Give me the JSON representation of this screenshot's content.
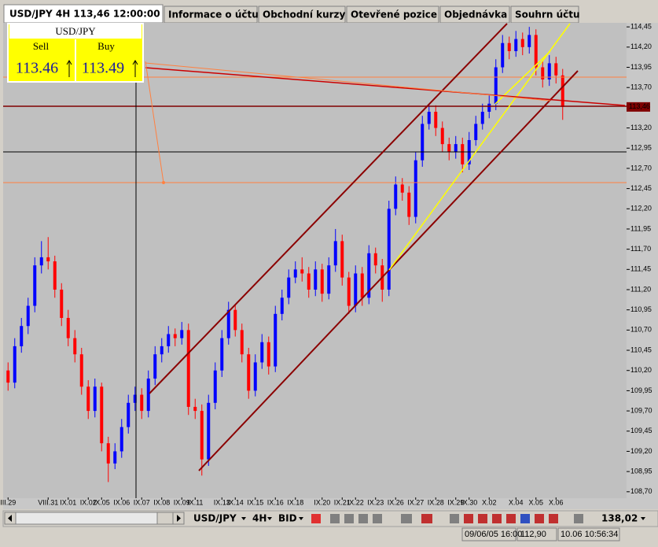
{
  "tabs": [
    "Informace o účtu",
    "Obchodní kurzy",
    "Otevřené pozice",
    "Objednávka",
    "Souhrn účtu"
  ],
  "widget": {
    "symbol": "USD/JPY",
    "sell_label": "Sell",
    "sell_price": "113.46",
    "buy_label": "Buy",
    "buy_price": "113.49"
  },
  "toolbar": {
    "symbol": "USD/JPY",
    "period": "4H",
    "price_type": "BID",
    "value": "138,02"
  },
  "status": {
    "datetime": "09/06/05 16:00",
    "price": "112,90",
    "clock": "10.06 10:56:34"
  },
  "chart_data": {
    "type": "candlestick",
    "title": "USD/JPY 4H 113,46 12:00:00",
    "up_color": "#0000ff",
    "down_color": "#ff0000",
    "ylim": [
      108.63,
      114.51
    ],
    "yticks": [
      {
        "value": 114.45,
        "label": "114,45"
      },
      {
        "value": 114.2,
        "label": "114,20"
      },
      {
        "value": 113.95,
        "label": "113,95"
      },
      {
        "value": 113.7,
        "label": "113,70"
      },
      {
        "value": 113.2,
        "label": "113,20"
      },
      {
        "value": 112.95,
        "label": "112,95"
      },
      {
        "value": 112.7,
        "label": "112,70"
      },
      {
        "value": 112.45,
        "label": "112,45"
      },
      {
        "value": 112.2,
        "label": "112,20"
      },
      {
        "value": 111.95,
        "label": "111,95"
      },
      {
        "value": 111.7,
        "label": "111,70"
      },
      {
        "value": 111.45,
        "label": "111,45"
      },
      {
        "value": 111.2,
        "label": "111,20"
      },
      {
        "value": 110.95,
        "label": "110,95"
      },
      {
        "value": 110.7,
        "label": "110,70"
      },
      {
        "value": 110.45,
        "label": "110,45"
      },
      {
        "value": 110.2,
        "label": "110,20"
      },
      {
        "value": 109.95,
        "label": "109,95"
      },
      {
        "value": 109.7,
        "label": "109,70"
      },
      {
        "value": 109.45,
        "label": "109,45"
      },
      {
        "value": 109.2,
        "label": "109,20"
      },
      {
        "value": 108.95,
        "label": "108,95"
      },
      {
        "value": 108.7,
        "label": "108,70"
      }
    ],
    "current_price": {
      "value": 113.46,
      "label": "113,46"
    },
    "categories": [
      "III.29",
      null,
      null,
      null,
      null,
      null,
      "VIII.31",
      null,
      null,
      "IX.01",
      null,
      null,
      "IX.02",
      null,
      "IX.05",
      null,
      null,
      "IX.06",
      null,
      null,
      "IX.07",
      null,
      null,
      "IX.08",
      null,
      null,
      "IX.09",
      null,
      "IX.11",
      null,
      null,
      null,
      "IX.13",
      null,
      "IX.14",
      null,
      null,
      "IX.15",
      null,
      null,
      "IX.16",
      null,
      null,
      "IX.18",
      null,
      null,
      null,
      "IX.20",
      null,
      null,
      "IX.21",
      null,
      "IX.22",
      null,
      null,
      "IX.23",
      null,
      null,
      "IX.26",
      null,
      null,
      "IX.27",
      null,
      null,
      "IX.28",
      null,
      null,
      "IX.29",
      null,
      "IX.30",
      null,
      null,
      "X.02",
      null,
      null,
      null,
      "X.04",
      null,
      null,
      "X.05",
      null,
      null,
      "X.06",
      null
    ],
    "ohlc": [
      [
        110.2,
        110.3,
        109.95,
        110.05
      ],
      [
        110.05,
        110.6,
        109.98,
        110.5
      ],
      [
        110.5,
        110.85,
        110.42,
        110.75
      ],
      [
        110.75,
        111.1,
        110.65,
        111.0
      ],
      [
        111.0,
        111.6,
        110.92,
        111.5
      ],
      [
        111.5,
        111.8,
        111.4,
        111.6
      ],
      [
        111.6,
        111.85,
        111.45,
        111.55
      ],
      [
        111.55,
        111.62,
        111.1,
        111.2
      ],
      [
        111.2,
        111.28,
        110.75,
        110.85
      ],
      [
        110.85,
        110.95,
        110.5,
        110.6
      ],
      [
        110.6,
        110.7,
        110.3,
        110.4
      ],
      [
        110.4,
        110.48,
        109.9,
        110.0
      ],
      [
        110.0,
        110.08,
        109.6,
        109.7
      ],
      [
        109.7,
        110.1,
        109.62,
        110.0
      ],
      [
        110.0,
        110.05,
        109.2,
        109.3
      ],
      [
        109.3,
        109.38,
        108.82,
        109.05
      ],
      [
        109.05,
        109.3,
        108.98,
        109.2
      ],
      [
        109.2,
        109.6,
        109.12,
        109.5
      ],
      [
        109.5,
        109.9,
        109.42,
        109.8
      ],
      [
        109.8,
        110.0,
        109.7,
        109.9
      ],
      [
        109.9,
        109.98,
        109.6,
        109.7
      ],
      [
        109.7,
        110.2,
        109.62,
        110.1
      ],
      [
        110.1,
        110.5,
        110.02,
        110.4
      ],
      [
        110.4,
        110.6,
        110.3,
        110.5
      ],
      [
        110.5,
        110.75,
        110.42,
        110.65
      ],
      [
        110.65,
        110.72,
        110.5,
        110.6
      ],
      [
        110.6,
        110.8,
        110.52,
        110.7
      ],
      [
        110.7,
        110.78,
        109.65,
        109.75
      ],
      [
        109.75,
        109.85,
        109.6,
        109.7
      ],
      [
        109.7,
        109.78,
        108.9,
        109.1
      ],
      [
        109.1,
        109.9,
        109.02,
        109.8
      ],
      [
        109.8,
        110.3,
        109.72,
        110.2
      ],
      [
        110.2,
        110.7,
        110.12,
        110.6
      ],
      [
        110.6,
        111.05,
        110.52,
        110.95
      ],
      [
        110.95,
        111.02,
        110.62,
        110.7
      ],
      [
        110.7,
        110.78,
        110.3,
        110.4
      ],
      [
        110.4,
        110.48,
        109.85,
        109.95
      ],
      [
        109.95,
        110.4,
        109.88,
        110.3
      ],
      [
        110.3,
        110.65,
        110.22,
        110.55
      ],
      [
        110.55,
        110.62,
        110.15,
        110.25
      ],
      [
        110.25,
        111.0,
        110.18,
        110.9
      ],
      [
        110.9,
        111.2,
        110.82,
        111.1
      ],
      [
        111.1,
        111.45,
        111.02,
        111.35
      ],
      [
        111.35,
        111.55,
        111.28,
        111.45
      ],
      [
        111.45,
        111.6,
        111.3,
        111.4
      ],
      [
        111.4,
        111.48,
        111.1,
        111.2
      ],
      [
        111.2,
        111.55,
        111.12,
        111.45
      ],
      [
        111.45,
        111.52,
        111.05,
        111.15
      ],
      [
        111.15,
        111.6,
        111.08,
        111.5
      ],
      [
        111.5,
        111.95,
        111.42,
        111.8
      ],
      [
        111.8,
        111.88,
        111.25,
        111.35
      ],
      [
        111.35,
        111.42,
        110.9,
        111.0
      ],
      [
        111.0,
        111.5,
        110.92,
        111.4
      ],
      [
        111.4,
        111.48,
        111.0,
        111.1
      ],
      [
        111.1,
        111.75,
        111.02,
        111.65
      ],
      [
        111.65,
        111.72,
        111.4,
        111.5
      ],
      [
        111.5,
        111.58,
        111.05,
        111.2
      ],
      [
        111.2,
        112.3,
        111.12,
        112.2
      ],
      [
        112.2,
        112.6,
        112.12,
        112.5
      ],
      [
        112.5,
        112.58,
        112.3,
        112.4
      ],
      [
        112.4,
        112.48,
        112.0,
        112.1
      ],
      [
        112.1,
        112.9,
        112.02,
        112.8
      ],
      [
        112.8,
        113.35,
        112.72,
        113.25
      ],
      [
        113.25,
        113.5,
        113.18,
        113.4
      ],
      [
        113.4,
        113.48,
        113.1,
        113.2
      ],
      [
        113.2,
        113.28,
        112.9,
        113.0
      ],
      [
        113.0,
        113.08,
        112.8,
        112.9
      ],
      [
        112.9,
        113.1,
        112.82,
        113.0
      ],
      [
        113.0,
        113.08,
        112.65,
        112.75
      ],
      [
        112.75,
        113.15,
        112.68,
        113.05
      ],
      [
        113.05,
        113.35,
        112.98,
        113.25
      ],
      [
        113.25,
        113.5,
        113.18,
        113.4
      ],
      [
        113.4,
        113.6,
        113.32,
        113.5
      ],
      [
        113.5,
        114.05,
        113.42,
        113.95
      ],
      [
        113.95,
        114.35,
        113.88,
        114.25
      ],
      [
        114.25,
        114.33,
        114.05,
        114.15
      ],
      [
        114.15,
        114.4,
        114.08,
        114.3
      ],
      [
        114.3,
        114.38,
        114.1,
        114.2
      ],
      [
        114.2,
        114.45,
        114.12,
        114.35
      ],
      [
        114.35,
        114.42,
        113.85,
        113.95
      ],
      [
        113.95,
        114.03,
        113.7,
        113.8
      ],
      [
        113.8,
        114.1,
        113.72,
        114.0
      ],
      [
        114.0,
        114.08,
        113.75,
        113.85
      ],
      [
        113.85,
        113.93,
        113.3,
        113.46
      ]
    ]
  }
}
